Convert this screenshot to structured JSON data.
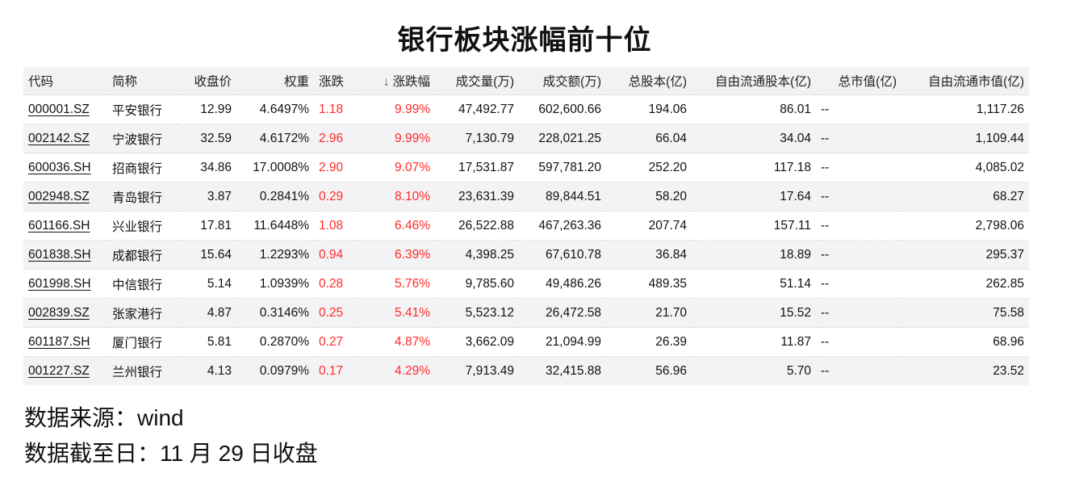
{
  "title": "银行板块涨幅前十位",
  "table": {
    "headers": {
      "code": "代码",
      "name": "简称",
      "close": "收盘价",
      "weight": "权重",
      "change": "涨跌",
      "change_pct": "涨跌幅",
      "volume": "成交量(万)",
      "amount": "成交额(万)",
      "total_shares": "总股本(亿)",
      "float_shares": "自由流通股本(亿)",
      "total_mcap": "总市值(亿)",
      "float_mcap": "自由流通市值(亿)"
    },
    "sort_icon": "arrow-down-icon",
    "rows": [
      {
        "code": "000001.SZ",
        "name": "平安银行",
        "close": "12.99",
        "weight": "4.6497%",
        "change": "1.18",
        "change_pct": "9.99%",
        "volume": "47,492.77",
        "amount": "602,600.66",
        "total_shares": "194.06",
        "float_shares": "86.01",
        "total_mcap": "--",
        "float_mcap": "1,117.26"
      },
      {
        "code": "002142.SZ",
        "name": "宁波银行",
        "close": "32.59",
        "weight": "4.6172%",
        "change": "2.96",
        "change_pct": "9.99%",
        "volume": "7,130.79",
        "amount": "228,021.25",
        "total_shares": "66.04",
        "float_shares": "34.04",
        "total_mcap": "--",
        "float_mcap": "1,109.44"
      },
      {
        "code": "600036.SH",
        "name": "招商银行",
        "close": "34.86",
        "weight": "17.0008%",
        "change": "2.90",
        "change_pct": "9.07%",
        "volume": "17,531.87",
        "amount": "597,781.20",
        "total_shares": "252.20",
        "float_shares": "117.18",
        "total_mcap": "--",
        "float_mcap": "4,085.02"
      },
      {
        "code": "002948.SZ",
        "name": "青岛银行",
        "close": "3.87",
        "weight": "0.2841%",
        "change": "0.29",
        "change_pct": "8.10%",
        "volume": "23,631.39",
        "amount": "89,844.51",
        "total_shares": "58.20",
        "float_shares": "17.64",
        "total_mcap": "--",
        "float_mcap": "68.27"
      },
      {
        "code": "601166.SH",
        "name": "兴业银行",
        "close": "17.81",
        "weight": "11.6448%",
        "change": "1.08",
        "change_pct": "6.46%",
        "volume": "26,522.88",
        "amount": "467,263.36",
        "total_shares": "207.74",
        "float_shares": "157.11",
        "total_mcap": "--",
        "float_mcap": "2,798.06"
      },
      {
        "code": "601838.SH",
        "name": "成都银行",
        "close": "15.64",
        "weight": "1.2293%",
        "change": "0.94",
        "change_pct": "6.39%",
        "volume": "4,398.25",
        "amount": "67,610.78",
        "total_shares": "36.84",
        "float_shares": "18.89",
        "total_mcap": "--",
        "float_mcap": "295.37"
      },
      {
        "code": "601998.SH",
        "name": "中信银行",
        "close": "5.14",
        "weight": "1.0939%",
        "change": "0.28",
        "change_pct": "5.76%",
        "volume": "9,785.60",
        "amount": "49,486.26",
        "total_shares": "489.35",
        "float_shares": "51.14",
        "total_mcap": "--",
        "float_mcap": "262.85"
      },
      {
        "code": "002839.SZ",
        "name": "张家港行",
        "close": "4.87",
        "weight": "0.3146%",
        "change": "0.25",
        "change_pct": "5.41%",
        "volume": "5,523.12",
        "amount": "26,472.58",
        "total_shares": "21.70",
        "float_shares": "15.52",
        "total_mcap": "--",
        "float_mcap": "75.58"
      },
      {
        "code": "601187.SH",
        "name": "厦门银行",
        "close": "5.81",
        "weight": "0.2870%",
        "change": "0.27",
        "change_pct": "4.87%",
        "volume": "3,662.09",
        "amount": "21,094.99",
        "total_shares": "26.39",
        "float_shares": "11.87",
        "total_mcap": "--",
        "float_mcap": "68.96"
      },
      {
        "code": "001227.SZ",
        "name": "兰州银行",
        "close": "4.13",
        "weight": "0.0979%",
        "change": "0.17",
        "change_pct": "4.29%",
        "volume": "7,913.49",
        "amount": "32,415.88",
        "total_shares": "56.96",
        "float_shares": "5.70",
        "total_mcap": "--",
        "float_mcap": "23.52"
      }
    ]
  },
  "colors": {
    "up": "#ff2a2a",
    "header_bg": "#f1f2f4",
    "stripe_bg": "#f3f3f5"
  },
  "footer": {
    "source_label": "数据来源：",
    "source_value": "wind",
    "date_label": "数据截至日：",
    "date_value": "11 月 29 日收盘"
  }
}
